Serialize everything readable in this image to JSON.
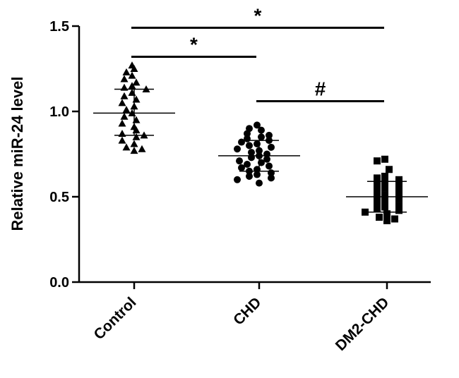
{
  "chart_data": {
    "type": "scatter",
    "categories": [
      "Control",
      "CHD",
      "DM2-CHD"
    ],
    "ylabel": "Relative miR-24 level",
    "xlabel": "",
    "ylim": [
      0,
      1.5
    ],
    "yticks": [
      "0.0",
      "0.5",
      "1.0",
      "1.5"
    ],
    "series": [
      {
        "category": "Control",
        "marker": "triangle",
        "values": [
          1.27,
          1.25,
          1.23,
          1.21,
          1.19,
          1.17,
          1.15,
          1.14,
          1.13,
          1.11,
          1.09,
          1.07,
          1.05,
          1.03,
          1.01,
          0.99,
          0.97,
          0.95,
          0.93,
          0.91,
          0.89,
          0.87,
          0.86,
          0.85,
          0.83,
          0.81,
          0.79,
          0.78,
          0.77
        ],
        "mean": 0.99,
        "sd_upper": 1.13,
        "sd_lower": 0.86
      },
      {
        "category": "CHD",
        "marker": "circle",
        "values": [
          0.92,
          0.9,
          0.89,
          0.87,
          0.86,
          0.85,
          0.84,
          0.83,
          0.82,
          0.81,
          0.8,
          0.79,
          0.78,
          0.77,
          0.76,
          0.75,
          0.74,
          0.73,
          0.72,
          0.71,
          0.7,
          0.69,
          0.68,
          0.67,
          0.66,
          0.65,
          0.64,
          0.63,
          0.62,
          0.61,
          0.6,
          0.58
        ],
        "mean": 0.74,
        "sd_upper": 0.83,
        "sd_lower": 0.65
      },
      {
        "category": "DM2-CHD",
        "marker": "square",
        "values": [
          0.72,
          0.71,
          0.66,
          0.62,
          0.61,
          0.6,
          0.58,
          0.57,
          0.56,
          0.55,
          0.54,
          0.52,
          0.51,
          0.5,
          0.49,
          0.47,
          0.46,
          0.45,
          0.44,
          0.43,
          0.42,
          0.41,
          0.4,
          0.38,
          0.37,
          0.36
        ],
        "mean": 0.5,
        "sd_upper": 0.59,
        "sd_lower": 0.41
      }
    ],
    "significance": [
      {
        "from": "Control",
        "to": "DM2-CHD",
        "y": 1.49,
        "label": "*"
      },
      {
        "from": "Control",
        "to": "CHD",
        "y": 1.32,
        "label": "*"
      },
      {
        "from": "CHD",
        "to": "DM2-CHD",
        "y": 1.06,
        "label": "#"
      }
    ]
  }
}
